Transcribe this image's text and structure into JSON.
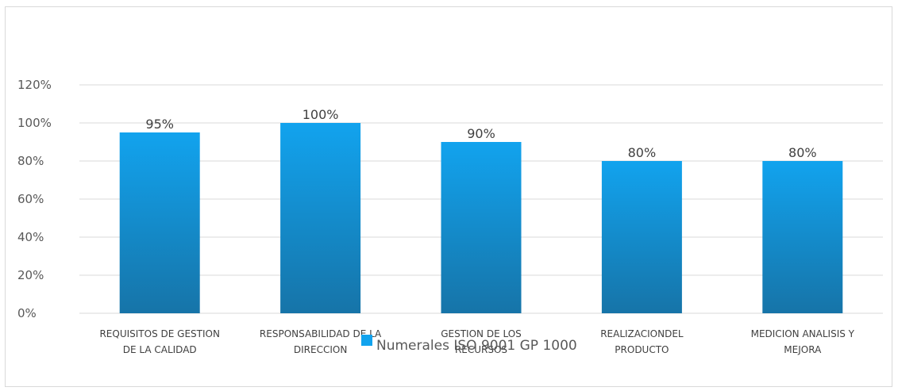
{
  "chart_data": {
    "type": "bar",
    "categories": [
      [
        "REQUISITOS DE GESTION",
        "DE LA CALIDAD"
      ],
      [
        "RESPONSABILIDAD DE LA",
        "DIRECCION"
      ],
      [
        "GESTION DE LOS",
        "RECURSOS"
      ],
      [
        "REALIZACIONDEL",
        "PRODUCTO"
      ],
      [
        "MEDICION ANALISIS Y",
        "MEJORA"
      ]
    ],
    "series": [
      {
        "name": "Numerales ISO 9001 GP 1000",
        "values": [
          95,
          100,
          90,
          80,
          80
        ]
      }
    ],
    "data_labels": [
      "95%",
      "100%",
      "90%",
      "80%",
      "80%"
    ],
    "y_ticks": [
      0,
      20,
      40,
      60,
      80,
      100,
      120
    ],
    "y_tick_labels": [
      "0%",
      "20%",
      "40%",
      "60%",
      "80%",
      "100%",
      "120%"
    ],
    "ylim": [
      0,
      120
    ],
    "grid": true,
    "legend_position": "bottom",
    "bar_color_top": "#12a3ee",
    "bar_color_bottom": "#1674a8"
  }
}
